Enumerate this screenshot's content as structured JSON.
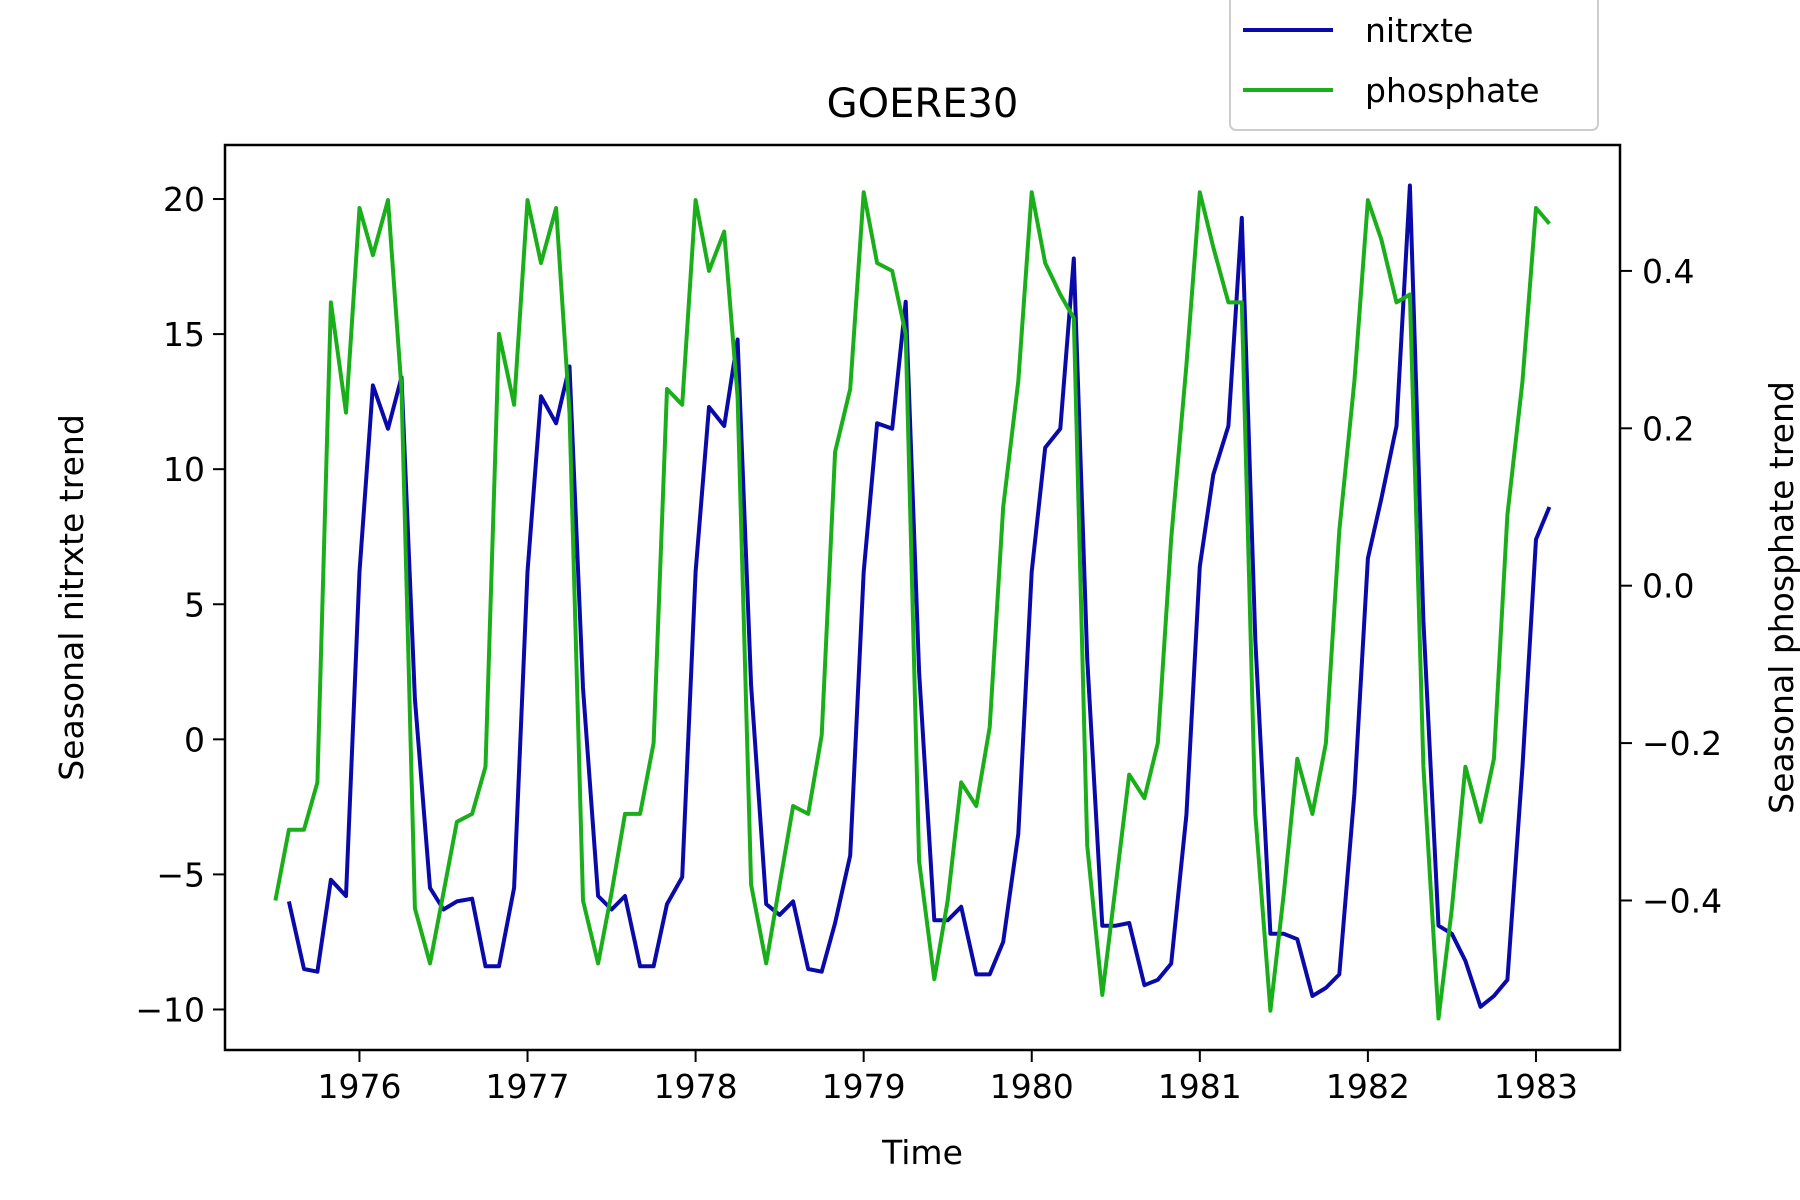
{
  "chart_data": {
    "type": "line",
    "title": "GOERE30",
    "xlabel": "Time",
    "ylabel_left": "Seasonal nitrxte trend",
    "ylabel_right": "Seasonal phosphate trend",
    "xlim": [
      1975.2,
      1983.5
    ],
    "ylim_left": [
      -11.5,
      22
    ],
    "ylim_right": [
      -0.59,
      0.56
    ],
    "x_ticks": [
      1976,
      1977,
      1978,
      1979,
      1980,
      1981,
      1982,
      1983
    ],
    "x_tick_labels": [
      "1976",
      "1977",
      "1978",
      "1979",
      "1980",
      "1981",
      "1982",
      "1983"
    ],
    "y_ticks_left": [
      -10,
      -5,
      0,
      5,
      10,
      15,
      20
    ],
    "y_tick_labels_left": [
      "−10",
      "−5",
      "0",
      "5",
      "10",
      "15",
      "20"
    ],
    "y_ticks_right": [
      -0.4,
      -0.2,
      0.0,
      0.2,
      0.4
    ],
    "y_tick_labels_right": [
      "−0.4",
      "−0.2",
      "0.0",
      "0.2",
      "0.4"
    ],
    "legend_position": "top-right, above plot",
    "grid": false,
    "series": [
      {
        "name": "nitrxte",
        "axis": "left",
        "color": "#0a0aaa",
        "points": [
          [
            1975.58,
            -6.0
          ],
          [
            1975.67,
            -8.5
          ],
          [
            1975.75,
            -8.6
          ],
          [
            1975.83,
            -5.2
          ],
          [
            1975.92,
            -5.8
          ],
          [
            1976.0,
            6.2
          ],
          [
            1976.08,
            13.1
          ],
          [
            1976.17,
            11.5
          ],
          [
            1976.25,
            13.4
          ],
          [
            1976.33,
            1.5
          ],
          [
            1976.42,
            -5.5
          ],
          [
            1976.5,
            -6.3
          ],
          [
            1976.58,
            -6.0
          ],
          [
            1976.67,
            -5.9
          ],
          [
            1976.75,
            -8.4
          ],
          [
            1976.83,
            -8.4
          ],
          [
            1976.92,
            -5.5
          ],
          [
            1977.0,
            6.2
          ],
          [
            1977.08,
            12.7
          ],
          [
            1977.17,
            11.7
          ],
          [
            1977.25,
            13.8
          ],
          [
            1977.33,
            1.9
          ],
          [
            1977.42,
            -5.8
          ],
          [
            1977.5,
            -6.3
          ],
          [
            1977.58,
            -5.8
          ],
          [
            1977.67,
            -8.4
          ],
          [
            1977.75,
            -8.4
          ],
          [
            1977.83,
            -6.1
          ],
          [
            1977.92,
            -5.1
          ],
          [
            1978.0,
            6.2
          ],
          [
            1978.08,
            12.3
          ],
          [
            1978.17,
            11.6
          ],
          [
            1978.25,
            14.8
          ],
          [
            1978.33,
            2.0
          ],
          [
            1978.42,
            -6.1
          ],
          [
            1978.5,
            -6.5
          ],
          [
            1978.58,
            -6.0
          ],
          [
            1978.67,
            -8.5
          ],
          [
            1978.75,
            -8.6
          ],
          [
            1978.83,
            -6.8
          ],
          [
            1978.92,
            -4.3
          ],
          [
            1979.0,
            6.2
          ],
          [
            1979.08,
            11.7
          ],
          [
            1979.17,
            11.5
          ],
          [
            1979.25,
            16.2
          ],
          [
            1979.33,
            2.5
          ],
          [
            1979.42,
            -6.7
          ],
          [
            1979.5,
            -6.7
          ],
          [
            1979.58,
            -6.2
          ],
          [
            1979.67,
            -8.7
          ],
          [
            1979.75,
            -8.7
          ],
          [
            1979.83,
            -7.5
          ],
          [
            1979.92,
            -3.5
          ],
          [
            1980.0,
            6.2
          ],
          [
            1980.08,
            10.8
          ],
          [
            1980.17,
            11.5
          ],
          [
            1980.25,
            17.8
          ],
          [
            1980.33,
            3.0
          ],
          [
            1980.42,
            -6.9
          ],
          [
            1980.5,
            -6.9
          ],
          [
            1980.58,
            -6.8
          ],
          [
            1980.67,
            -9.1
          ],
          [
            1980.75,
            -8.9
          ],
          [
            1980.83,
            -8.3
          ],
          [
            1980.92,
            -2.8
          ],
          [
            1981.0,
            6.4
          ],
          [
            1981.08,
            9.8
          ],
          [
            1981.17,
            11.6
          ],
          [
            1981.25,
            19.3
          ],
          [
            1981.33,
            3.7
          ],
          [
            1981.42,
            -7.2
          ],
          [
            1981.5,
            -7.2
          ],
          [
            1981.58,
            -7.4
          ],
          [
            1981.67,
            -9.5
          ],
          [
            1981.75,
            -9.2
          ],
          [
            1981.83,
            -8.7
          ],
          [
            1981.92,
            -2.0
          ],
          [
            1982.0,
            6.7
          ],
          [
            1982.08,
            8.9
          ],
          [
            1982.17,
            11.6
          ],
          [
            1982.25,
            20.5
          ],
          [
            1982.33,
            4.4
          ],
          [
            1982.42,
            -6.9
          ],
          [
            1982.5,
            -7.2
          ],
          [
            1982.58,
            -8.2
          ],
          [
            1982.67,
            -9.9
          ],
          [
            1982.75,
            -9.5
          ],
          [
            1982.83,
            -8.9
          ],
          [
            1982.92,
            -1.0
          ],
          [
            1983.0,
            7.4
          ],
          [
            1983.08,
            8.6
          ]
        ]
      },
      {
        "name": "phosphate",
        "axis": "right",
        "color": "#1aaf1a",
        "points": [
          [
            1975.5,
            -0.4
          ],
          [
            1975.58,
            -0.31
          ],
          [
            1975.67,
            -0.31
          ],
          [
            1975.75,
            -0.25
          ],
          [
            1975.83,
            0.36
          ],
          [
            1975.92,
            0.22
          ],
          [
            1976.0,
            0.48
          ],
          [
            1976.08,
            0.42
          ],
          [
            1976.17,
            0.49
          ],
          [
            1976.25,
            0.25
          ],
          [
            1976.33,
            -0.41
          ],
          [
            1976.42,
            -0.48
          ],
          [
            1976.5,
            -0.39
          ],
          [
            1976.58,
            -0.3
          ],
          [
            1976.67,
            -0.29
          ],
          [
            1976.75,
            -0.23
          ],
          [
            1976.83,
            0.32
          ],
          [
            1976.92,
            0.23
          ],
          [
            1977.0,
            0.49
          ],
          [
            1977.08,
            0.41
          ],
          [
            1977.17,
            0.48
          ],
          [
            1977.25,
            0.22
          ],
          [
            1977.33,
            -0.4
          ],
          [
            1977.42,
            -0.48
          ],
          [
            1977.5,
            -0.39
          ],
          [
            1977.58,
            -0.29
          ],
          [
            1977.67,
            -0.29
          ],
          [
            1977.75,
            -0.2
          ],
          [
            1977.83,
            0.25
          ],
          [
            1977.92,
            0.23
          ],
          [
            1978.0,
            0.49
          ],
          [
            1978.08,
            0.4
          ],
          [
            1978.17,
            0.45
          ],
          [
            1978.25,
            0.24
          ],
          [
            1978.33,
            -0.38
          ],
          [
            1978.42,
            -0.48
          ],
          [
            1978.5,
            -0.38
          ],
          [
            1978.58,
            -0.28
          ],
          [
            1978.67,
            -0.29
          ],
          [
            1978.75,
            -0.19
          ],
          [
            1978.83,
            0.17
          ],
          [
            1978.92,
            0.25
          ],
          [
            1979.0,
            0.5
          ],
          [
            1979.08,
            0.41
          ],
          [
            1979.17,
            0.4
          ],
          [
            1979.25,
            0.32
          ],
          [
            1979.33,
            -0.35
          ],
          [
            1979.42,
            -0.5
          ],
          [
            1979.5,
            -0.4
          ],
          [
            1979.58,
            -0.25
          ],
          [
            1979.67,
            -0.28
          ],
          [
            1979.75,
            -0.18
          ],
          [
            1979.83,
            0.1
          ],
          [
            1979.92,
            0.26
          ],
          [
            1980.0,
            0.5
          ],
          [
            1980.08,
            0.41
          ],
          [
            1980.17,
            0.37
          ],
          [
            1980.25,
            0.34
          ],
          [
            1980.33,
            -0.33
          ],
          [
            1980.42,
            -0.52
          ],
          [
            1980.5,
            -0.38
          ],
          [
            1980.58,
            -0.24
          ],
          [
            1980.67,
            -0.27
          ],
          [
            1980.75,
            -0.2
          ],
          [
            1980.83,
            0.06
          ],
          [
            1980.92,
            0.28
          ],
          [
            1981.0,
            0.5
          ],
          [
            1981.08,
            0.43
          ],
          [
            1981.17,
            0.36
          ],
          [
            1981.25,
            0.36
          ],
          [
            1981.33,
            -0.29
          ],
          [
            1981.42,
            -0.54
          ],
          [
            1981.5,
            -0.39
          ],
          [
            1981.58,
            -0.22
          ],
          [
            1981.67,
            -0.29
          ],
          [
            1981.75,
            -0.2
          ],
          [
            1981.83,
            0.07
          ],
          [
            1981.92,
            0.26
          ],
          [
            1982.0,
            0.49
          ],
          [
            1982.08,
            0.44
          ],
          [
            1982.17,
            0.36
          ],
          [
            1982.25,
            0.37
          ],
          [
            1982.33,
            -0.23
          ],
          [
            1982.42,
            -0.55
          ],
          [
            1982.5,
            -0.41
          ],
          [
            1982.58,
            -0.23
          ],
          [
            1982.67,
            -0.3
          ],
          [
            1982.75,
            -0.22
          ],
          [
            1982.83,
            0.09
          ],
          [
            1982.92,
            0.26
          ],
          [
            1983.0,
            0.48
          ],
          [
            1983.08,
            0.46
          ]
        ]
      }
    ]
  }
}
